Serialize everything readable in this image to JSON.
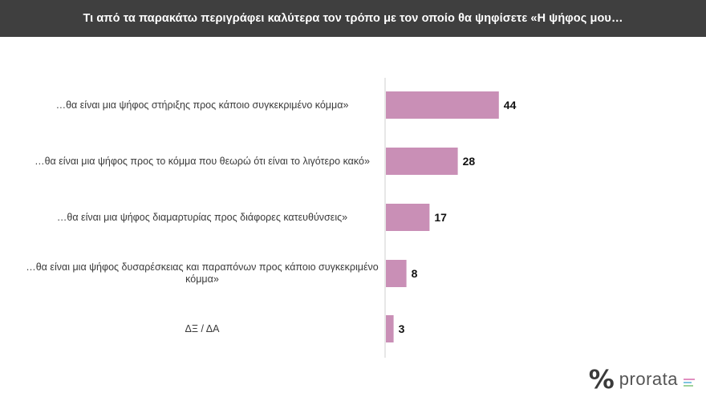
{
  "header": {
    "title": "Τι από τα παρακάτω περιγράφει καλύτερα τον τρόπο με τον οποίο θα ψηφίσετε «Η ψήφος μου…"
  },
  "chart_data": {
    "type": "bar",
    "orientation": "horizontal",
    "categories": [
      "…θα είναι μια ψήφος στήριξης προς κάποιο συγκεκριμένο κόμμα»",
      "…θα είναι μια ψήφος προς το κόμμα που θεωρώ ότι είναι το λιγότερο κακό»",
      "…θα είναι μια ψήφος διαμαρτυρίας προς διάφορες κατευθύνσεις»",
      "…θα είναι μια ψήφος δυσαρέσκειας και παραπόνων προς κάποιο συγκεκριμένο κόμμα»",
      "ΔΞ / ΔΑ"
    ],
    "values": [
      44,
      28,
      17,
      8,
      3
    ],
    "bar_color": "#c98fb6",
    "grid": false,
    "legend": false
  },
  "logo": {
    "mark": "%",
    "text": "prorata",
    "bar_colors": [
      "#e28fc0",
      "#7fc4e0",
      "#9fd39a"
    ]
  }
}
